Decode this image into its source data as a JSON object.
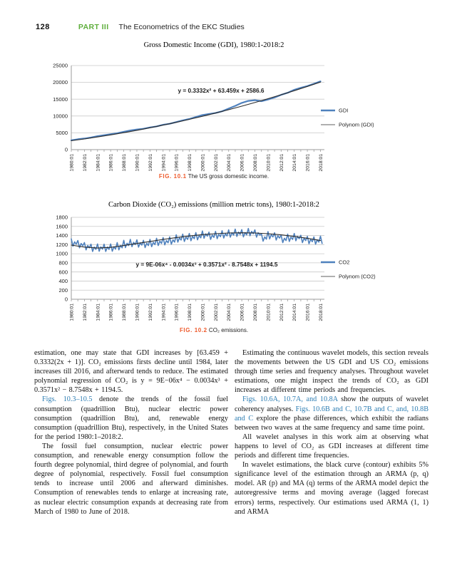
{
  "page": {
    "number": "128",
    "part_label": "PART III",
    "part_title": "The Econometrics of the EKC Studies"
  },
  "colors": {
    "accent_green": "#5faf3c",
    "accent_orange": "#ee5b2d",
    "link_blue": "#2e7eb3",
    "series_blue": "#4f81bd",
    "polynom_curve": "#2b2b2b",
    "polynom_legend": "#7f7f7f",
    "gridline": "#c9c9c9",
    "axis": "#9b9b9b",
    "tick_text": "#222222"
  },
  "figures": [
    {
      "title": "Gross Domestic Income (GDI), 1980:1-2018:2",
      "caption_label": "FIG. 10.1",
      "caption_text": "The US gross domestic income.",
      "chart_data": {
        "type": "line",
        "equation": "y = 0.3332x² + 63.459x + 2586.6",
        "xlim": [
          1980,
          2018.6
        ],
        "ylim": [
          0,
          25000
        ],
        "ytick": 5000,
        "x_tick_labels": [
          "1980:01",
          "1982:01",
          "1984:01",
          "1986:01",
          "1988:01",
          "1990:01",
          "1992:01",
          "1994:01",
          "1996:01",
          "1998:01",
          "2000:01",
          "2002:01",
          "2004:01",
          "2006:01",
          "2008:01",
          "2010:01",
          "2012:01",
          "2014:01",
          "2016:01",
          "2018:01"
        ],
        "grid": true,
        "legend_position": "right",
        "series": [
          {
            "name": "GDI",
            "role": "data",
            "x0": 1980,
            "dx": 1,
            "width": 2.2,
            "values": [
              2800,
              3100,
              3300,
              3600,
              4000,
              4300,
              4600,
              4900,
              5300,
              5700,
              6000,
              6200,
              6600,
              6900,
              7400,
              7700,
              8200,
              8700,
              9100,
              9700,
              10300,
              10600,
              10900,
              11400,
              12200,
              13000,
              13900,
              14500,
              14700,
              14400,
              14900,
              15500,
              16300,
              16900,
              17800,
              18400,
              18900,
              19600,
              20300
            ]
          },
          {
            "name": "Polynom (GDI)",
            "role": "fit",
            "x0": 1980,
            "dx": 2,
            "width": 1.1,
            "values": [
              2650,
              3185,
              3762,
              4382,
              5044,
              5749,
              6496,
              7286,
              8119,
              8994,
              9912,
              10872,
              11875,
              12921,
              14009,
              15140,
              16313,
              17529,
              18788,
              20089
            ]
          }
        ]
      }
    },
    {
      "title": "Carbon Dioxide (CO₂) emissions (million metric tons), 1980:1-2018:2",
      "caption_label": "FIG. 10.2",
      "caption_text": "CO₂ emissions.",
      "chart_data": {
        "type": "line",
        "equation": "y = 9E-06x⁴ - 0.0034x³ + 0.3571x² - 8.7548x + 1194.5",
        "xlim": [
          1980,
          2018.6
        ],
        "ylim": [
          0,
          1800
        ],
        "ytick": 200,
        "x_tick_labels": [
          "1980:01",
          "1982:01",
          "1984:01",
          "1986:01",
          "1988:01",
          "1990:01",
          "1992:01",
          "1994:01",
          "1996:01",
          "1998:01",
          "2000:01",
          "2002:01",
          "2004:01",
          "2006:01",
          "2008:01",
          "2010:01",
          "2012:01",
          "2014:01",
          "2016:01",
          "2018:01"
        ],
        "grid": true,
        "legend_position": "right",
        "series": [
          {
            "name": "CO2",
            "role": "data",
            "x0": 1980,
            "dx": 0.25,
            "width": 1.6,
            "values": [
              1325,
              1165,
              1260,
              1210,
              1290,
              1130,
              1225,
              1175,
              1245,
              1085,
              1180,
              1130,
              1210,
              1050,
              1145,
              1095,
              1215,
              1055,
              1150,
              1100,
              1210,
              1050,
              1145,
              1095,
              1215,
              1055,
              1150,
              1100,
              1245,
              1085,
              1180,
              1130,
              1295,
              1135,
              1230,
              1180,
              1315,
              1155,
              1250,
              1200,
              1305,
              1145,
              1240,
              1190,
              1295,
              1135,
              1230,
              1180,
              1315,
              1155,
              1250,
              1200,
              1340,
              1180,
              1275,
              1225,
              1355,
              1195,
              1290,
              1240,
              1370,
              1210,
              1305,
              1255,
              1415,
              1255,
              1350,
              1300,
              1430,
              1270,
              1365,
              1315,
              1445,
              1285,
              1380,
              1330,
              1465,
              1305,
              1400,
              1350,
              1500,
              1340,
              1435,
              1385,
              1475,
              1315,
              1410,
              1360,
              1490,
              1330,
              1425,
              1375,
              1505,
              1345,
              1440,
              1390,
              1525,
              1365,
              1460,
              1410,
              1540,
              1380,
              1475,
              1425,
              1530,
              1370,
              1465,
              1415,
              1555,
              1395,
              1490,
              1440,
              1525,
              1365,
              1460,
              1410,
              1435,
              1275,
              1370,
              1320,
              1485,
              1325,
              1420,
              1370,
              1460,
              1300,
              1395,
              1345,
              1405,
              1245,
              1340,
              1290,
              1430,
              1270,
              1365,
              1315,
              1445,
              1285,
              1380,
              1330,
              1405,
              1245,
              1340,
              1290,
              1380,
              1220,
              1315,
              1265,
              1370,
              1210,
              1305,
              1255,
              1385,
              1225
            ]
          },
          {
            "name": "Polynom (CO2)",
            "role": "fit",
            "x0": 1980,
            "dx": 2,
            "width": 1.1,
            "values": [
              1190,
              1145,
              1125,
              1140,
              1180,
              1225,
              1270,
              1315,
              1355,
              1390,
              1420,
              1440,
              1455,
              1460,
              1455,
              1440,
              1415,
              1380,
              1340,
              1290
            ]
          }
        ]
      }
    }
  ],
  "columns": {
    "left": [
      {
        "indent": false,
        "segments": [
          {
            "t": "estimation, one may state that GDI increases by [63.459 + 0.3332(2x + 1)]. CO₂ emissions firsts decline until 1984, later increases till 2016, and afterward tends to reduce. The estimated polynomial regression of CO₂ is y = 9E−06x⁴ − 0.0034x³ + 0.3571x² − 8.7548x + 1194.5."
          }
        ]
      },
      {
        "indent": true,
        "segments": [
          {
            "t": "Figs. 10.3–10.5",
            "s": "link"
          },
          {
            "t": " denote the trends of the fossil fuel consumption (quadrillion Btu), nuclear electric power consumption (quadrillion Btu), and, renewable energy consumption (quadrillion Btu), respectively, in the United States for the period 1980:1–2018:2."
          }
        ]
      },
      {
        "indent": true,
        "segments": [
          {
            "t": "The fossil fuel consumption, nuclear electric power consumption, and renewable energy consumption follow the fourth degree polynomial, third degree of polynomial, and fourth degree of polynomial, respectively. Fossil fuel consumption tends to increase until 2006 and afterward diminishes. Consumption of renewables tends to enlarge at increasing rate, as nuclear electric consumption expands at decreasing rate from March of 1980 to June of 2018."
          }
        ]
      }
    ],
    "right": [
      {
        "indent": true,
        "segments": [
          {
            "t": "Estimating the continuous wavelet models, this section reveals the movements between the US GDI and US CO₂ emissions through time series and frequency analyses. Throughout wavelet estimations, one might inspect the trends of CO₂ as GDI increases at different time periods and frequencies."
          }
        ]
      },
      {
        "indent": true,
        "segments": [
          {
            "t": "Figs. 10.6A, 10.7A, and 10.8A",
            "s": "link"
          },
          {
            "t": " show the outputs of wavelet coherency analyses. "
          },
          {
            "t": "Figs. 10.6B and C, 10.7B and C, and, 10.8B and C",
            "s": "link"
          },
          {
            "t": " explore the phase differences, which exhibit the radians between two waves at the same frequency and same time point."
          }
        ]
      },
      {
        "indent": true,
        "segments": [
          {
            "t": "All wavelet analyses in this work aim at observing what happens to level of CO₂ as GDI increases at different time periods and different time frequencies."
          }
        ]
      },
      {
        "indent": true,
        "segments": [
          {
            "t": "In wavelet estimations, the black curve (contour) exhibits 5% significance level of the estimation through an ARMA (p, q) model. AR (p) and MA (q) terms of the ARMA model depict the autoregressive terms and moving average (lagged forecast errors) terms, respectively. Our estimations used ARMA (1, 1) and ARMA"
          }
        ]
      }
    ]
  }
}
